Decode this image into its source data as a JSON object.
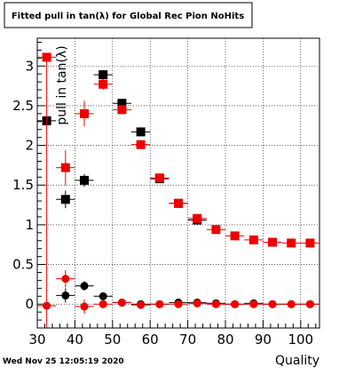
{
  "chart_data": {
    "type": "scatter",
    "title": "Fitted pull in tan(λ) for Global Rec Pion NoHits",
    "xlabel": "Quality",
    "ylabel": "pull in tan(λ)",
    "xlim": [
      30,
      105
    ],
    "ylim": [
      -0.3,
      3.35
    ],
    "xticks": [
      "30",
      "40",
      "50",
      "60",
      "70",
      "80",
      "90",
      "100"
    ],
    "yticks": [
      "0",
      "0.5",
      "1",
      "1.5",
      "2",
      "2.5",
      "3"
    ],
    "grid": true,
    "timestamp": "Wed Nov 25 12:05:19 2020",
    "series": [
      {
        "color": "#000000",
        "marker": "square",
        "x": [
          32.5,
          37.5,
          42.5,
          47.5,
          52.5,
          57.5,
          62.5,
          67.5,
          72.5
        ],
        "y": [
          2.31,
          1.32,
          1.56,
          2.89,
          2.53,
          2.17,
          1.58,
          1.27,
          1.06
        ],
        "err": [
          0.0,
          0.11,
          0.08,
          0.06,
          0.05,
          0.04,
          0.03,
          0.03,
          0.03
        ]
      },
      {
        "color": "#ee0000",
        "marker": "square",
        "x": [
          32.5,
          37.5,
          42.5,
          47.5,
          52.5,
          57.5,
          62.5,
          67.5,
          72.5,
          77.5,
          82.5,
          87.5,
          92.5,
          97.5,
          102.5
        ],
        "y": [
          3.11,
          1.72,
          2.4,
          2.77,
          2.45,
          2.01,
          1.59,
          1.27,
          1.08,
          0.94,
          0.86,
          0.81,
          0.78,
          0.77,
          0.77
        ],
        "err": [
          0.0,
          0.22,
          0.16,
          0.07,
          0.05,
          0.04,
          0.03,
          0.03,
          0.03,
          0.02,
          0.02,
          0.02,
          0.02,
          0.02,
          0.02
        ]
      },
      {
        "color": "#000000",
        "marker": "circle",
        "x": [
          37.5,
          42.5,
          47.5,
          52.5,
          57.5,
          62.5,
          67.5,
          72.5,
          77.5,
          82.5,
          87.5,
          92.5,
          97.5,
          102.5
        ],
        "y": [
          0.11,
          0.23,
          0.1,
          0.02,
          0.0,
          0.0,
          0.02,
          0.02,
          0.01,
          0.0,
          0.01,
          0.0,
          0.0,
          0.0
        ],
        "err": [
          0.09,
          0.06,
          0.04,
          0.03,
          0.02,
          0.02,
          0.02,
          0.02,
          0.01,
          0.01,
          0.01,
          0.01,
          0.01,
          0.01
        ]
      },
      {
        "color": "#ee0000",
        "marker": "circle",
        "x": [
          32.5,
          37.5,
          42.5,
          47.5,
          52.5,
          57.5,
          62.5,
          67.5,
          72.5,
          77.5,
          82.5,
          87.5,
          92.5,
          97.5,
          102.5
        ],
        "y": [
          -0.02,
          0.32,
          -0.03,
          0.0,
          0.02,
          -0.01,
          0.0,
          0.0,
          0.01,
          0.0,
          0.0,
          0.0,
          0.0,
          0.0,
          0.0
        ],
        "err": [
          0.0,
          0.11,
          0.09,
          0.05,
          0.03,
          0.03,
          0.02,
          0.02,
          0.02,
          0.02,
          0.01,
          0.01,
          0.01,
          0.01,
          0.01
        ]
      }
    ]
  }
}
